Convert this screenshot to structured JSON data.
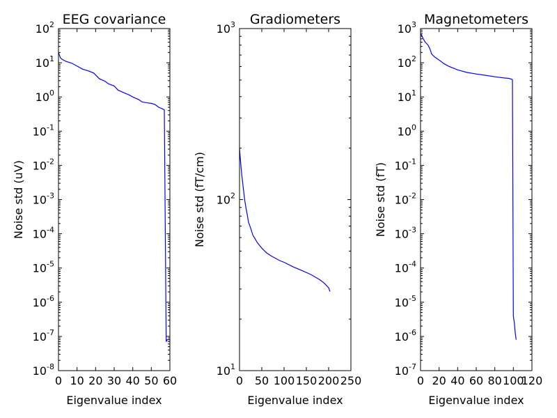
{
  "chart_data": [
    {
      "type": "line",
      "title": "EEG covariance",
      "xlabel": "Eigenvalue index",
      "ylabel": "Noise std (uV)",
      "yscale": "log",
      "xlim": [
        0,
        60
      ],
      "ylim_exp": [
        -8,
        2
      ],
      "xticks": [
        "0",
        "10",
        "20",
        "30",
        "40",
        "50",
        "60"
      ],
      "yticks": [
        {
          "base": "10",
          "exp": "-8"
        },
        {
          "base": "10",
          "exp": "-7"
        },
        {
          "base": "10",
          "exp": "-6"
        },
        {
          "base": "10",
          "exp": "-5"
        },
        {
          "base": "10",
          "exp": "-4"
        },
        {
          "base": "10",
          "exp": "-3"
        },
        {
          "base": "10",
          "exp": "-2"
        },
        {
          "base": "10",
          "exp": "-1"
        },
        {
          "base": "10",
          "exp": "0"
        },
        {
          "base": "10",
          "exp": "1"
        },
        {
          "base": "10",
          "exp": "2"
        }
      ],
      "x": [
        0,
        1,
        2,
        4,
        7,
        10,
        13,
        16,
        19,
        20,
        22,
        25,
        27,
        30,
        32,
        35,
        38,
        40,
        43,
        45,
        46,
        48,
        50,
        52,
        54,
        56,
        57,
        58,
        58.5,
        60
      ],
      "y": [
        20,
        14,
        12.5,
        11,
        9.8,
        8,
        6.5,
        5.8,
        5,
        4.4,
        3.4,
        2.9,
        2.4,
        2.1,
        1.6,
        1.35,
        1.15,
        1.0,
        0.85,
        0.72,
        0.7,
        0.67,
        0.65,
        0.6,
        0.5,
        0.45,
        0.42,
        7e-08,
        8e-08,
        8e-08
      ],
      "color": "#0000ff"
    },
    {
      "type": "line",
      "title": "Gradiometers",
      "xlabel": "Eigenvalue index",
      "ylabel": "Noise std (fT/cm)",
      "yscale": "log",
      "xlim": [
        0,
        250
      ],
      "ylim_exp": [
        1,
        3
      ],
      "xticks": [
        "0",
        "50",
        "100",
        "150",
        "200",
        "250"
      ],
      "yticks": [
        {
          "base": "10",
          "exp": "1"
        },
        {
          "base": "10",
          "exp": "2"
        },
        {
          "base": "10",
          "exp": "3"
        }
      ],
      "x": [
        0,
        1,
        3,
        5,
        8,
        10,
        12,
        15,
        18,
        20,
        25,
        30,
        40,
        50,
        60,
        70,
        80,
        90,
        100,
        120,
        140,
        160,
        180,
        190,
        200,
        203
      ],
      "y": [
        200,
        185,
        160,
        140,
        120,
        108,
        98,
        88,
        80,
        74,
        68,
        62,
        56,
        52,
        49,
        47,
        45.5,
        44,
        43,
        40.5,
        38.5,
        36.5,
        34,
        32.5,
        30.5,
        29
      ],
      "color": "#0000ff"
    },
    {
      "type": "line",
      "title": "Magnetometers",
      "xlabel": "Eigenvalue index",
      "ylabel": "Noise std (fT)",
      "yscale": "log",
      "xlim": [
        0,
        120
      ],
      "ylim_exp": [
        -7,
        3
      ],
      "xticks": [
        "0",
        "20",
        "40",
        "60",
        "80",
        "100",
        "120"
      ],
      "yticks": [
        {
          "base": "10",
          "exp": "-7"
        },
        {
          "base": "10",
          "exp": "-6"
        },
        {
          "base": "10",
          "exp": "-5"
        },
        {
          "base": "10",
          "exp": "-4"
        },
        {
          "base": "10",
          "exp": "-3"
        },
        {
          "base": "10",
          "exp": "-2"
        },
        {
          "base": "10",
          "exp": "-1"
        },
        {
          "base": "10",
          "exp": "0"
        },
        {
          "base": "10",
          "exp": "1"
        },
        {
          "base": "10",
          "exp": "2"
        },
        {
          "base": "10",
          "exp": "3"
        }
      ],
      "x": [
        0,
        1,
        3,
        5,
        8,
        10,
        12,
        15,
        20,
        25,
        30,
        40,
        50,
        60,
        70,
        80,
        90,
        95,
        98,
        99,
        100,
        101,
        102,
        103
      ],
      "y": [
        700,
        650,
        500,
        400,
        330,
        260,
        180,
        150,
        120,
        95,
        80,
        62,
        52,
        47,
        43,
        39,
        36,
        35,
        33,
        32,
        4e-06,
        2.5e-06,
        1.3e-06,
        8e-07
      ],
      "color": "#0000ff"
    }
  ]
}
